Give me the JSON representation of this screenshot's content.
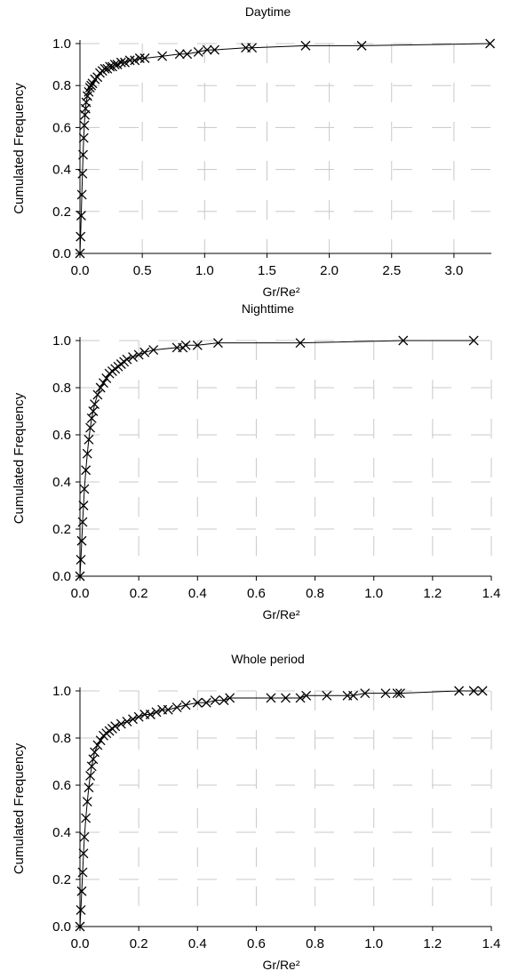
{
  "chart_data": [
    {
      "type": "scatter",
      "title": "Daytime",
      "xlabel": "Gr/Re²",
      "ylabel": "Cumulated Frequency",
      "xlim": [
        0,
        3.3
      ],
      "ylim": [
        0,
        1.0
      ],
      "xticks": [
        "0.0",
        "0.5",
        "1.0",
        "1.5",
        "2.0",
        "2.5",
        "3.0"
      ],
      "yticks": [
        "0.0",
        "0.2",
        "0.4",
        "0.6",
        "0.8",
        "1.0"
      ],
      "grid": "dashed",
      "marker": "x",
      "line": true,
      "series": [
        {
          "x": [
            0.0,
            0.005,
            0.01,
            0.015,
            0.02,
            0.025,
            0.03,
            0.035,
            0.04,
            0.045,
            0.05,
            0.06,
            0.07,
            0.08,
            0.09,
            0.1,
            0.12,
            0.14,
            0.16,
            0.18,
            0.2,
            0.22,
            0.24,
            0.26,
            0.28,
            0.3,
            0.33,
            0.36,
            0.4,
            0.44,
            0.48,
            0.52,
            0.66,
            0.8,
            0.86,
            0.95,
            1.02,
            1.08,
            1.33,
            1.38,
            1.81,
            2.26,
            3.29
          ],
          "y": [
            0.0,
            0.08,
            0.18,
            0.28,
            0.38,
            0.47,
            0.55,
            0.61,
            0.66,
            0.69,
            0.72,
            0.75,
            0.77,
            0.79,
            0.8,
            0.81,
            0.83,
            0.84,
            0.86,
            0.87,
            0.88,
            0.88,
            0.89,
            0.89,
            0.9,
            0.9,
            0.91,
            0.91,
            0.92,
            0.92,
            0.93,
            0.93,
            0.94,
            0.95,
            0.95,
            0.96,
            0.97,
            0.97,
            0.98,
            0.98,
            0.99,
            0.99,
            1.0
          ]
        }
      ]
    },
    {
      "type": "scatter",
      "title": "Nighttime",
      "xlabel": "Gr/Re²",
      "ylabel": "Cumulated Frequency",
      "xlim": [
        0,
        1.4
      ],
      "ylim": [
        0,
        1.0
      ],
      "xticks": [
        "0.0",
        "0.2",
        "0.4",
        "0.6",
        "0.8",
        "1.0",
        "1.2",
        "1.4"
      ],
      "yticks": [
        "0.0",
        "0.2",
        "0.4",
        "0.6",
        "0.8",
        "1.0"
      ],
      "grid": "dashed",
      "marker": "x",
      "line": true,
      "series": [
        {
          "x": [
            0.0,
            0.003,
            0.006,
            0.009,
            0.012,
            0.015,
            0.02,
            0.025,
            0.03,
            0.035,
            0.04,
            0.045,
            0.05,
            0.06,
            0.07,
            0.08,
            0.09,
            0.1,
            0.11,
            0.12,
            0.13,
            0.14,
            0.15,
            0.16,
            0.18,
            0.2,
            0.22,
            0.25,
            0.33,
            0.35,
            0.36,
            0.4,
            0.47,
            0.75,
            1.1,
            1.34
          ],
          "y": [
            0.0,
            0.07,
            0.15,
            0.23,
            0.3,
            0.37,
            0.45,
            0.52,
            0.58,
            0.63,
            0.67,
            0.7,
            0.73,
            0.77,
            0.8,
            0.82,
            0.84,
            0.86,
            0.87,
            0.88,
            0.89,
            0.9,
            0.91,
            0.92,
            0.93,
            0.94,
            0.95,
            0.96,
            0.97,
            0.97,
            0.98,
            0.98,
            0.99,
            0.99,
            1.0,
            1.0
          ]
        }
      ]
    },
    {
      "type": "scatter",
      "title": "Whole period",
      "xlabel": "Gr/Re²",
      "ylabel": "Cumulated Frequency",
      "xlim": [
        0,
        1.4
      ],
      "ylim": [
        0,
        1.0
      ],
      "xticks": [
        "0.0",
        "0.2",
        "0.4",
        "0.6",
        "0.8",
        "1.0",
        "1.2",
        "1.4"
      ],
      "yticks": [
        "0.0",
        "0.2",
        "0.4",
        "0.6",
        "0.8",
        "1.0"
      ],
      "grid": "dashed",
      "marker": "x",
      "line": true,
      "series": [
        {
          "x": [
            0.0,
            0.003,
            0.006,
            0.009,
            0.012,
            0.015,
            0.02,
            0.025,
            0.03,
            0.035,
            0.04,
            0.045,
            0.05,
            0.06,
            0.07,
            0.08,
            0.09,
            0.1,
            0.11,
            0.12,
            0.14,
            0.16,
            0.18,
            0.2,
            0.22,
            0.24,
            0.26,
            0.28,
            0.3,
            0.33,
            0.36,
            0.4,
            0.43,
            0.46,
            0.49,
            0.51,
            0.65,
            0.7,
            0.75,
            0.77,
            0.84,
            0.91,
            0.93,
            0.97,
            1.04,
            1.08,
            1.09,
            1.29,
            1.34,
            1.37
          ],
          "y": [
            0.0,
            0.07,
            0.15,
            0.23,
            0.31,
            0.38,
            0.46,
            0.53,
            0.59,
            0.64,
            0.68,
            0.71,
            0.74,
            0.77,
            0.79,
            0.81,
            0.82,
            0.83,
            0.84,
            0.85,
            0.86,
            0.87,
            0.88,
            0.89,
            0.9,
            0.9,
            0.91,
            0.92,
            0.92,
            0.93,
            0.94,
            0.95,
            0.95,
            0.96,
            0.96,
            0.97,
            0.97,
            0.97,
            0.97,
            0.98,
            0.98,
            0.98,
            0.98,
            0.99,
            0.99,
            0.99,
            0.99,
            1.0,
            1.0,
            1.0
          ]
        }
      ]
    }
  ]
}
